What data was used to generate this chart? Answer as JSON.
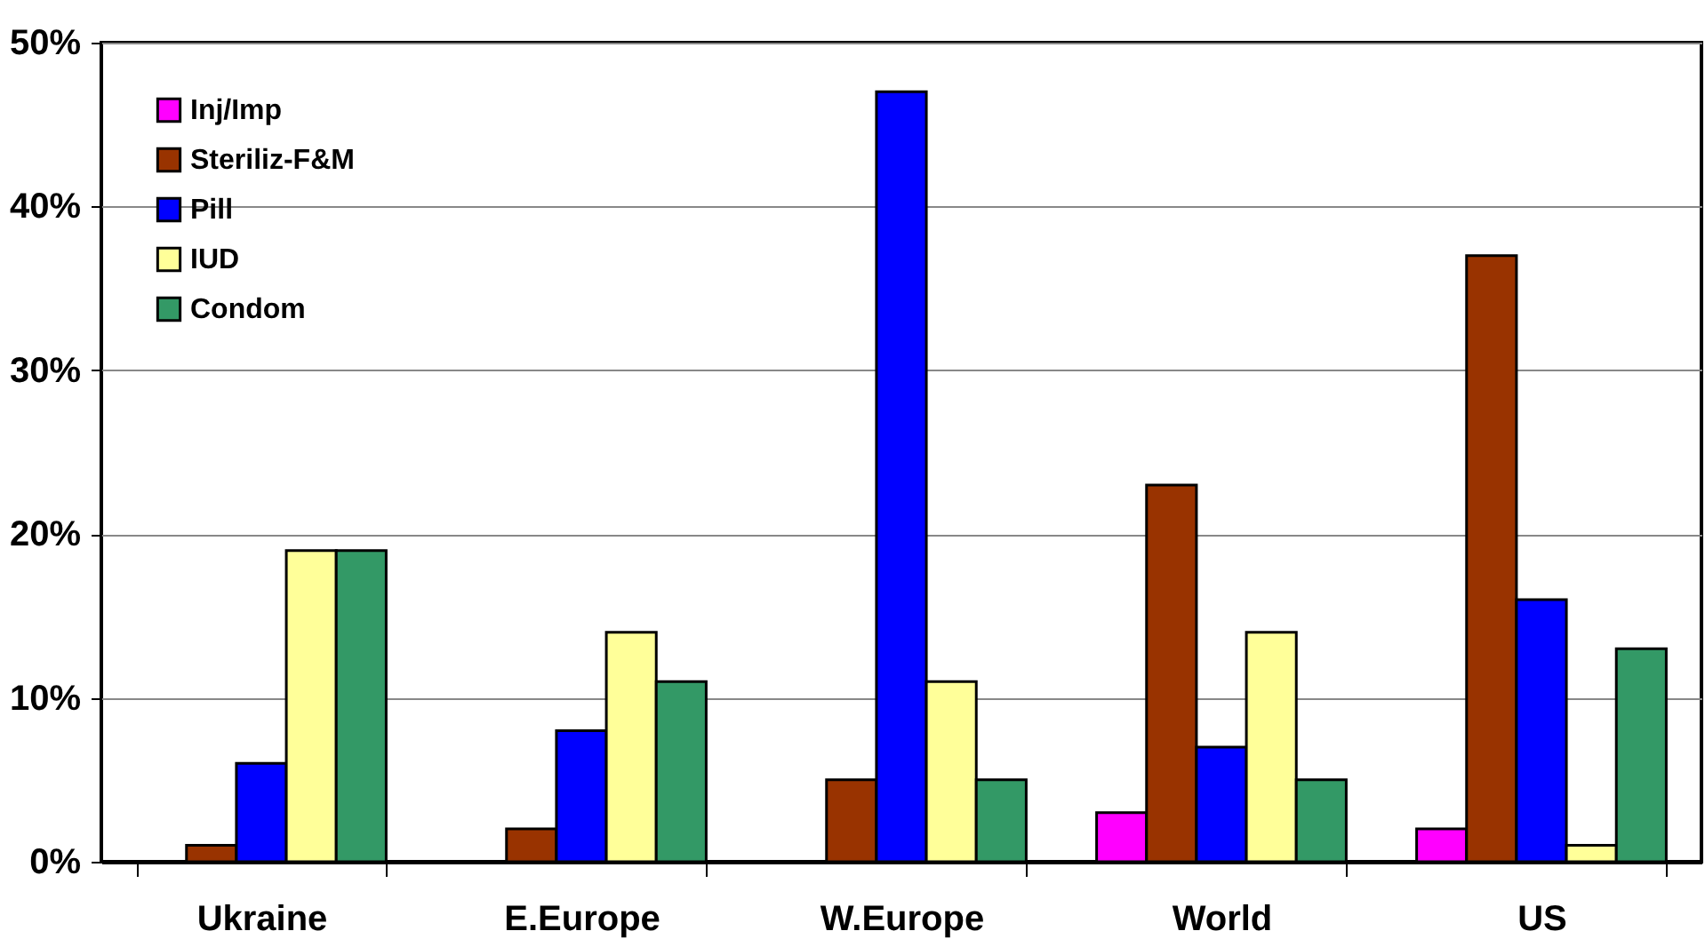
{
  "chart_data": {
    "type": "bar",
    "categories": [
      "Ukraine",
      "E.Europe",
      "W.Europe",
      "World",
      "US"
    ],
    "series": [
      {
        "name": "Inj/Imp",
        "color": "#ff00ff",
        "values": [
          null,
          null,
          null,
          3,
          2
        ]
      },
      {
        "name": "Steriliz-F&M",
        "color": "#993300",
        "values": [
          1,
          2,
          5,
          23,
          37
        ]
      },
      {
        "name": "Pill",
        "color": "#0000ff",
        "values": [
          6,
          8,
          47,
          7,
          16
        ]
      },
      {
        "name": "IUD",
        "color": "#ffff99",
        "values": [
          19,
          14,
          11,
          14,
          1
        ]
      },
      {
        "name": "Condom",
        "color": "#339966",
        "values": [
          19,
          11,
          5,
          5,
          13
        ]
      }
    ],
    "ylim": [
      0,
      50
    ],
    "yticks": [
      {
        "value": 0,
        "label": "0%"
      },
      {
        "value": 10,
        "label": "10%"
      },
      {
        "value": 20,
        "label": "20%"
      },
      {
        "value": 30,
        "label": "30%"
      },
      {
        "value": 40,
        "label": "40%"
      },
      {
        "value": 50,
        "label": "50%"
      }
    ],
    "grid": "y",
    "legend": "top left"
  }
}
